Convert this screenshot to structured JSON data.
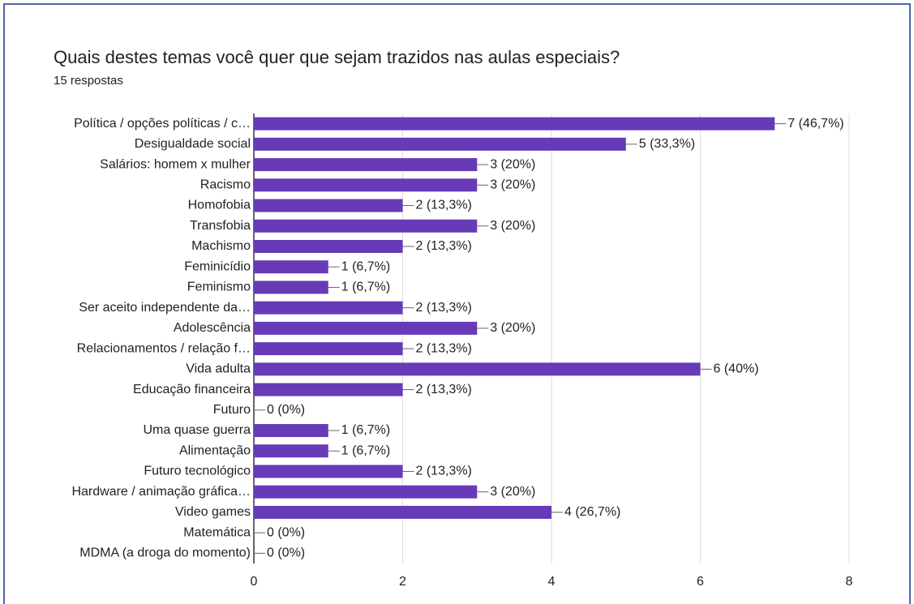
{
  "chart_data": {
    "type": "bar",
    "orientation": "horizontal",
    "title": "Quais destes temas você quer que sejam trazidos nas aulas especiais?",
    "subtitle": "15 respostas",
    "categories": [
      "Política / opções políticas / c…",
      "Desigualdade social",
      "Salários: homem x mulher",
      "Racismo",
      "Homofobia",
      "Transfobia",
      "Machismo",
      "Feminicídio",
      "Feminismo",
      "Ser aceito independente da…",
      "Adolescência",
      "Relacionamentos / relação f…",
      "Vida adulta",
      "Educação financeira",
      "Futuro",
      "Uma quase guerra",
      "Alimentação",
      "Futuro tecnológico",
      "Hardware / animação gráfica…",
      "Video games",
      "Matemática",
      "MDMA (a droga do momento)"
    ],
    "values": [
      7,
      5,
      3,
      3,
      2,
      3,
      2,
      1,
      1,
      2,
      3,
      2,
      6,
      2,
      0,
      1,
      1,
      2,
      3,
      4,
      0,
      0
    ],
    "value_labels": [
      "7 (46,7%)",
      "5 (33,3%)",
      "3 (20%)",
      "3 (20%)",
      "2 (13,3%)",
      "3 (20%)",
      "2 (13,3%)",
      "1 (6,7%)",
      "1 (6,7%)",
      "2 (13,3%)",
      "3 (20%)",
      "2 (13,3%)",
      "6 (40%)",
      "2 (13,3%)",
      "0 (0%)",
      "1 (6,7%)",
      "1 (6,7%)",
      "2 (13,3%)",
      "3 (20%)",
      "4 (26,7%)",
      "0 (0%)",
      "0 (0%)"
    ],
    "color": "#673ab7",
    "xlim": [
      0,
      8
    ],
    "xticks": [
      0,
      2,
      4,
      6,
      8
    ],
    "grid": true
  }
}
